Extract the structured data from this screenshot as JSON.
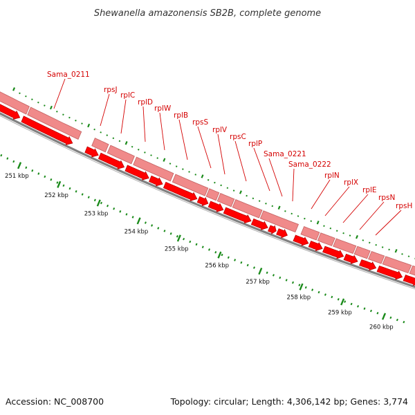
{
  "title": "Shewanella amazonensis SB2B, complete genome",
  "footer": {
    "accession": "Accession: NC_008700",
    "topology": "Topology: circular; Length: 4,306,142 bp; Genes: 3,774"
  },
  "colors": {
    "gene": "#ff0000",
    "gene_dark": "#b30000",
    "feature": "#f08a8a",
    "feature_edge": "#c26060",
    "backbone": "#808080",
    "tick": "#1a8a1a",
    "label": "#d40000"
  },
  "gene_labels": [
    "Sama_0211",
    "rpsJ",
    "rplC",
    "rplD",
    "rplW",
    "rplB",
    "rpsS",
    "rplV",
    "rpsC",
    "rplP",
    "Sama_0221",
    "Sama_0222",
    "rplN",
    "rplX",
    "rplE",
    "rpsN",
    "rpsH"
  ],
  "scale_labels": [
    "251 kbp",
    "252 kbp",
    "253 kbp",
    "254 kbp",
    "255 kbp",
    "256 kbp",
    "257 kbp",
    "258 kbp",
    "259 kbp",
    "260 kbp"
  ]
}
